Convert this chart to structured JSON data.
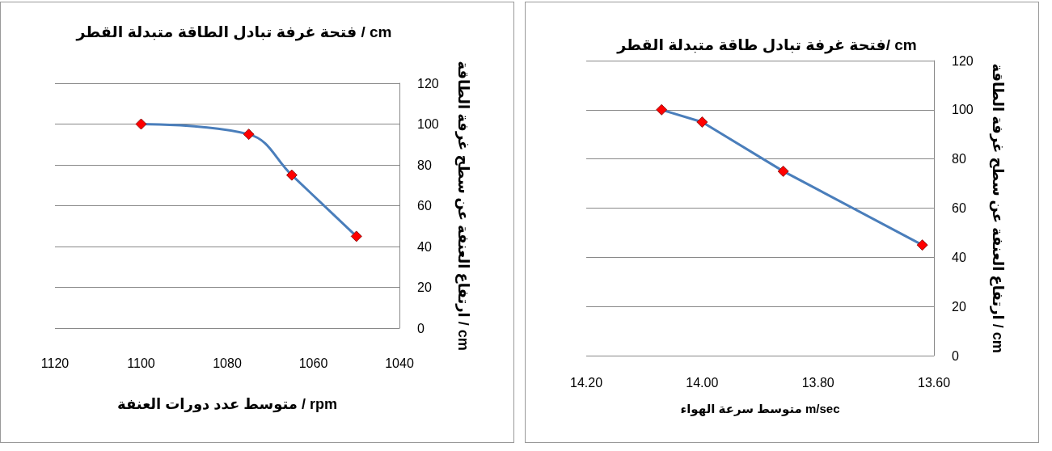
{
  "chart_data": [
    {
      "type": "line",
      "title": "فتحة غرفة تبادل الطاقة متبدلة القطر / cm",
      "xlabel": "متوسط عدد دورات العنفة / rpm",
      "ylabel": "ارتفاع العنفة عن سطح غرفة الطاقة / cm",
      "x": [
        1100,
        1075,
        1065,
        1050
      ],
      "series": [
        {
          "color": "#4a7ebb",
          "values": [
            100,
            95,
            75,
            45
          ]
        }
      ],
      "xlim": [
        1120,
        1040
      ],
      "xticks": [
        1120,
        1100,
        1080,
        1060,
        1040
      ],
      "ylim": [
        0,
        120
      ],
      "yticks": [
        0,
        20,
        40,
        60,
        80,
        100,
        120
      ],
      "grid": "y",
      "marker": "diamond",
      "line_style": "solid"
    },
    {
      "type": "line",
      "title": "فتحة غرفة تبادل طاقة متبدلة القطر/ cm",
      "xlabel": "متوسط سرعة الهواء m/sec",
      "ylabel": "ارتفاع العنفة عن سطح غرفة الطاقة / cm",
      "x": [
        14.07,
        14.0,
        13.86,
        13.62
      ],
      "series": [
        {
          "color": "#4a7ebb",
          "values": [
            100,
            95,
            75,
            45
          ]
        }
      ],
      "xlim": [
        14.2,
        13.6
      ],
      "xticks": [
        {
          "value": 14.2,
          "label": "14.20"
        },
        {
          "value": 14.0,
          "label": "14.00"
        },
        {
          "value": 13.8,
          "label": "13.80"
        },
        {
          "value": 13.6,
          "label": "13.60"
        }
      ],
      "ylim": [
        0,
        120
      ],
      "yticks": [
        0,
        20,
        40,
        60,
        80,
        100,
        120
      ],
      "grid": "y",
      "marker": "diamond",
      "line_style": "solid"
    }
  ]
}
